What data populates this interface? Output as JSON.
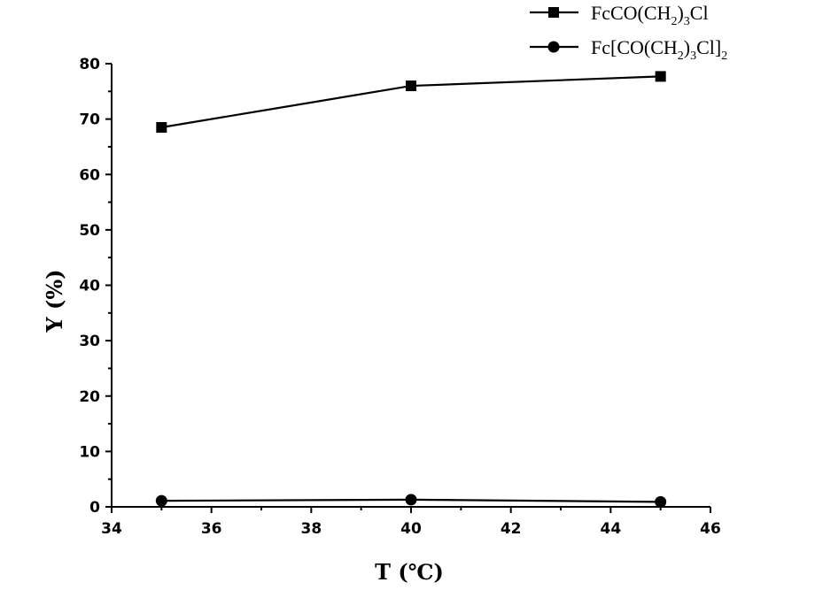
{
  "chart_data": {
    "type": "line",
    "xlabel": "T (℃)",
    "ylabel": "Y (%)",
    "xlim": [
      34,
      46
    ],
    "ylim": [
      0,
      80
    ],
    "xticks": [
      "34",
      "36",
      "38",
      "40",
      "42",
      "44",
      "46"
    ],
    "yticks": [
      "0",
      "10",
      "20",
      "30",
      "40",
      "50",
      "60",
      "70",
      "80"
    ],
    "grid": false,
    "legend_position": "top-right",
    "x": [
      35,
      40,
      45
    ],
    "series": [
      {
        "name": "FcCO(CH2)3Cl",
        "legend_parts": [
          {
            "text": "FcCO(CH",
            "sub": false
          },
          {
            "text": "2",
            "sub": true
          },
          {
            "text": ")",
            "sub": false
          },
          {
            "text": "3",
            "sub": true
          },
          {
            "text": "Cl",
            "sub": false
          }
        ],
        "marker": "square",
        "color": "#000000",
        "values": [
          68.5,
          76.0,
          77.7
        ]
      },
      {
        "name": "Fc[CO(CH2)3Cl]2",
        "legend_parts": [
          {
            "text": "Fc[CO(CH",
            "sub": false
          },
          {
            "text": "2",
            "sub": true
          },
          {
            "text": ")",
            "sub": false
          },
          {
            "text": "3",
            "sub": true
          },
          {
            "text": "Cl]",
            "sub": false
          },
          {
            "text": "2",
            "sub": true
          }
        ],
        "marker": "circle",
        "color": "#000000",
        "values": [
          1.1,
          1.3,
          0.9
        ]
      }
    ]
  }
}
